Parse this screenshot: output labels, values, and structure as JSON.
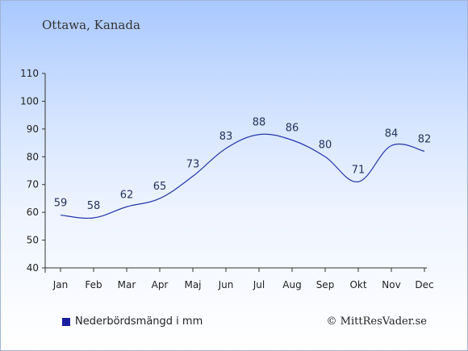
{
  "header": {
    "title": "Ottawa, Kanada"
  },
  "legend": {
    "label": "Nederbördsmängd i mm",
    "color": "#1a1fa0"
  },
  "footer": {
    "copyright": "© MittResVader.se"
  },
  "colors": {
    "line": "#2536a8",
    "axis": "#333333"
  },
  "chart_data": {
    "type": "line",
    "title": "",
    "xlabel": "",
    "ylabel": "",
    "categories": [
      "Jan",
      "Feb",
      "Mar",
      "Apr",
      "Maj",
      "Jun",
      "Jul",
      "Aug",
      "Sep",
      "Okt",
      "Nov",
      "Dec"
    ],
    "series": [
      {
        "name": "Nederbördsmängd i mm",
        "values": [
          59,
          58,
          62,
          65,
          73,
          83,
          88,
          86,
          80,
          71,
          84,
          82
        ]
      }
    ],
    "ylim": [
      40,
      110
    ],
    "yticks": [
      40,
      50,
      60,
      70,
      80,
      90,
      100,
      110
    ],
    "grid": false,
    "legend_position": "bottom-left"
  }
}
